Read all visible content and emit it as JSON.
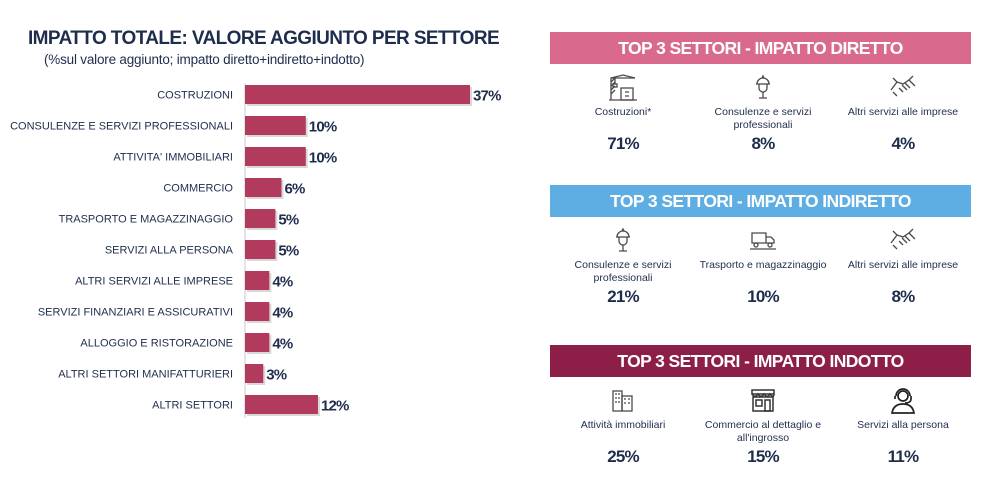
{
  "chart_data": {
    "type": "bar",
    "orientation": "horizontal",
    "title": "IMPATTO TOTALE: VALORE AGGIUNTO PER SETTORE",
    "subtitle": "(%sul valore aggiunto; impatto diretto+indiretto+indotto)",
    "categories": [
      "COSTRUZIONI",
      "CONSULENZE E SERVIZI PROFESSIONALI",
      "ATTIVITA' IMMOBILIARI",
      "COMMERCIO",
      "TRASPORTO E MAGAZZINAGGIO",
      "SERVIZI ALLA PERSONA",
      "ALTRI SERVIZI ALLE IMPRESE",
      "SERVIZI FINANZIARI E ASSICURATIVI",
      "ALLOGGIO E RISTORAZIONE",
      "ALTRI SETTORI MANIFATTURIERI",
      "ALTRI SETTORI"
    ],
    "values": [
      37,
      10,
      10,
      6,
      5,
      5,
      4,
      4,
      4,
      3,
      12
    ],
    "value_labels": [
      "37%",
      "10%",
      "10%",
      "6%",
      "5%",
      "5%",
      "4%",
      "4%",
      "4%",
      "3%",
      "12%"
    ],
    "xlim": [
      0,
      37
    ],
    "grid": false,
    "legend": "none",
    "colors": {
      "bar": "#b23a5c",
      "bar_shadow": "#d8d8d8",
      "axis": "#c9c9c9",
      "text": "#1f2d4d"
    }
  },
  "panels": [
    {
      "title": "TOP 3 SETTORI  -  IMPATTO DIRETTO",
      "color": "#d96a8e",
      "items": [
        {
          "icon": "construction-icon",
          "name": "Costruzioni*",
          "value": "71%"
        },
        {
          "icon": "consultant-icon",
          "name": "Consulenze e servizi professionali",
          "value": "8%"
        },
        {
          "icon": "handshake-icon",
          "name": "Altri servizi alle imprese",
          "value": "4%"
        }
      ]
    },
    {
      "title": "TOP 3 SETTORI  -  IMPATTO INDIRETTO",
      "color": "#5eaee3",
      "items": [
        {
          "icon": "consultant-icon",
          "name": "Consulenze e servizi professionali",
          "value": "21%"
        },
        {
          "icon": "truck-icon",
          "name": "Trasporto e magazzinaggio",
          "value": "10%"
        },
        {
          "icon": "handshake-icon",
          "name": "Altri servizi alle imprese",
          "value": "8%"
        }
      ]
    },
    {
      "title": "TOP 3 SETTORI  -  IMPATTO INDOTTO",
      "color": "#8c1e48",
      "items": [
        {
          "icon": "buildings-icon",
          "name": "Attività immobiliari",
          "value": "25%"
        },
        {
          "icon": "shop-icon",
          "name": "Commercio al dettaglio e all'ingrosso",
          "value": "15%"
        },
        {
          "icon": "person-headset-icon",
          "name": "Servizi alla persona",
          "value": "11%"
        }
      ]
    }
  ]
}
